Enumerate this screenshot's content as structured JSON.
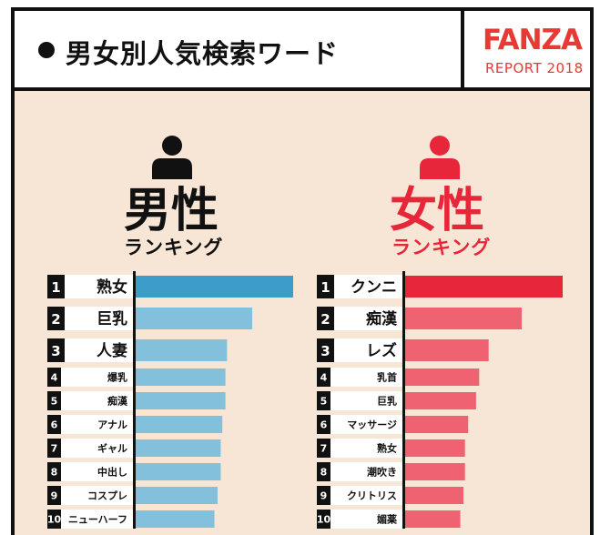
{
  "header": {
    "title": "男女別人気検索ワード",
    "logo": "FANZA",
    "report_label": "REPORT 2018"
  },
  "colors": {
    "male_top": "#3d9cc9",
    "male": "#82c0dc",
    "female_top": "#e8263a",
    "female": "#ef6272",
    "accent": "#e83a35",
    "background": "#f7e6d6"
  },
  "chart_data": [
    {
      "type": "bar",
      "title": "男性",
      "subtitle": "ランキング",
      "icon": "male-person-icon",
      "orientation": "horizontal",
      "categories": [
        "熟女",
        "巨乳",
        "人妻",
        "爆乳",
        "痴漢",
        "アナル",
        "ギャル",
        "中出し",
        "コスプレ",
        "ニューハーフ"
      ],
      "ranks": [
        1,
        2,
        3,
        4,
        5,
        6,
        7,
        8,
        9,
        10
      ],
      "values": [
        100,
        74,
        58,
        57,
        57,
        55,
        54,
        54,
        52,
        50
      ],
      "xlim": [
        0,
        100
      ],
      "grid": false
    },
    {
      "type": "bar",
      "title": "女性",
      "subtitle": "ランキング",
      "icon": "female-person-icon",
      "orientation": "horizontal",
      "categories": [
        "クンニ",
        "痴漢",
        "レズ",
        "乳首",
        "巨乳",
        "マッサージ",
        "熟女",
        "潮吹き",
        "クリトリス",
        "媚薬"
      ],
      "ranks": [
        1,
        2,
        3,
        4,
        5,
        6,
        7,
        8,
        9,
        10
      ],
      "values": [
        100,
        74,
        53,
        47,
        45,
        40,
        38,
        38,
        37,
        35
      ],
      "xlim": [
        0,
        100
      ],
      "grid": false
    }
  ]
}
